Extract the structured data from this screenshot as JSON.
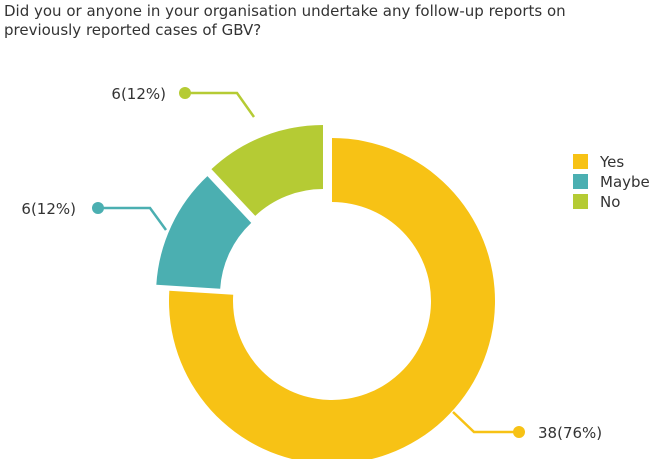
{
  "chart_data": {
    "type": "pie",
    "title": "Did you or anyone in your organisation undertake any follow-up reports on previously reported cases of GBV?",
    "categories": [
      "Yes",
      "Maybe",
      "No"
    ],
    "values": [
      38,
      6,
      6
    ],
    "percents": [
      76,
      12,
      12
    ],
    "data_labels": [
      "38(76%)",
      "6(12%)",
      "6(12%)"
    ],
    "colors": [
      "#F7C215",
      "#4BAFB1",
      "#B5CB34"
    ],
    "legend": {
      "position": "right",
      "entries": [
        "Yes",
        "Maybe",
        "No"
      ]
    },
    "donut": true,
    "exploded": [
      "Maybe",
      "No"
    ]
  }
}
